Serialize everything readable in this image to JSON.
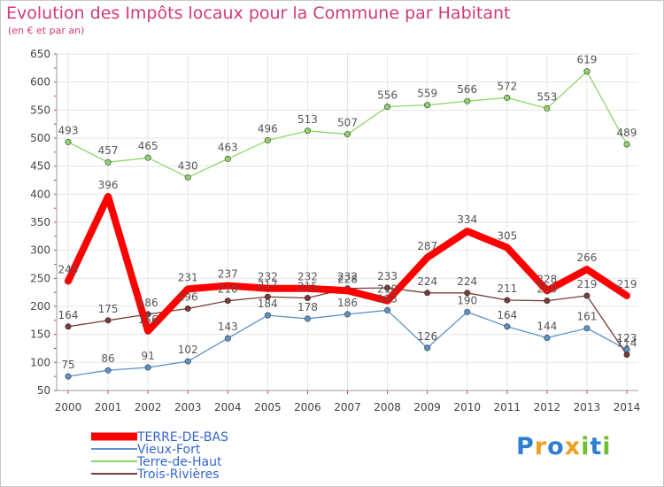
{
  "header": {
    "title": "Evolution des Impôts locaux pour la Commune par Habitant",
    "subtitle": "(en € et par an)"
  },
  "logo": {
    "text": "Proxiti",
    "colors": [
      "#2e7fcf",
      "#f0a020",
      "#2e7fcf",
      "#f0a020",
      "#6fbf2f",
      "#2e7fcf",
      "#6fbf2f"
    ]
  },
  "chart_data": {
    "type": "line",
    "title": "Evolution des Impôts locaux pour la Commune par Habitant",
    "subtitle": "(en € et par an)",
    "xlabel": "",
    "ylabel": "",
    "ylim": [
      50,
      650
    ],
    "yticks": [
      50,
      100,
      150,
      200,
      250,
      300,
      350,
      400,
      450,
      500,
      550,
      600,
      650
    ],
    "grid": true,
    "legend_position": "bottom-left",
    "categories": [
      "2000",
      "2001",
      "2002",
      "2003",
      "2004",
      "2005",
      "2006",
      "2007",
      "2008",
      "2009",
      "2010",
      "2011",
      "2012",
      "2013",
      "2014"
    ],
    "series": [
      {
        "name": "TERRE-DE-BAS",
        "color": "#ff0000",
        "values": [
          245,
          396,
          156,
          231,
          237,
          232,
          232,
          228,
          210,
          287,
          334,
          305,
          228,
          266,
          219
        ]
      },
      {
        "name": "Vieux-Fort",
        "color": "#5a93c8",
        "values": [
          75,
          86,
          91,
          102,
          143,
          184,
          178,
          186,
          193,
          126,
          190,
          164,
          144,
          161,
          123
        ]
      },
      {
        "name": "Terre-de-Haut",
        "color": "#8fd46a",
        "values": [
          493,
          457,
          465,
          430,
          463,
          496,
          513,
          507,
          556,
          559,
          566,
          572,
          553,
          619,
          489
        ]
      },
      {
        "name": "Trois-Rivières",
        "color": "#7a3a3a",
        "values": [
          164,
          175,
          186,
          196,
          210,
          217,
          215,
          232,
          233,
          224,
          224,
          211,
          210,
          219,
          114
        ]
      }
    ]
  }
}
